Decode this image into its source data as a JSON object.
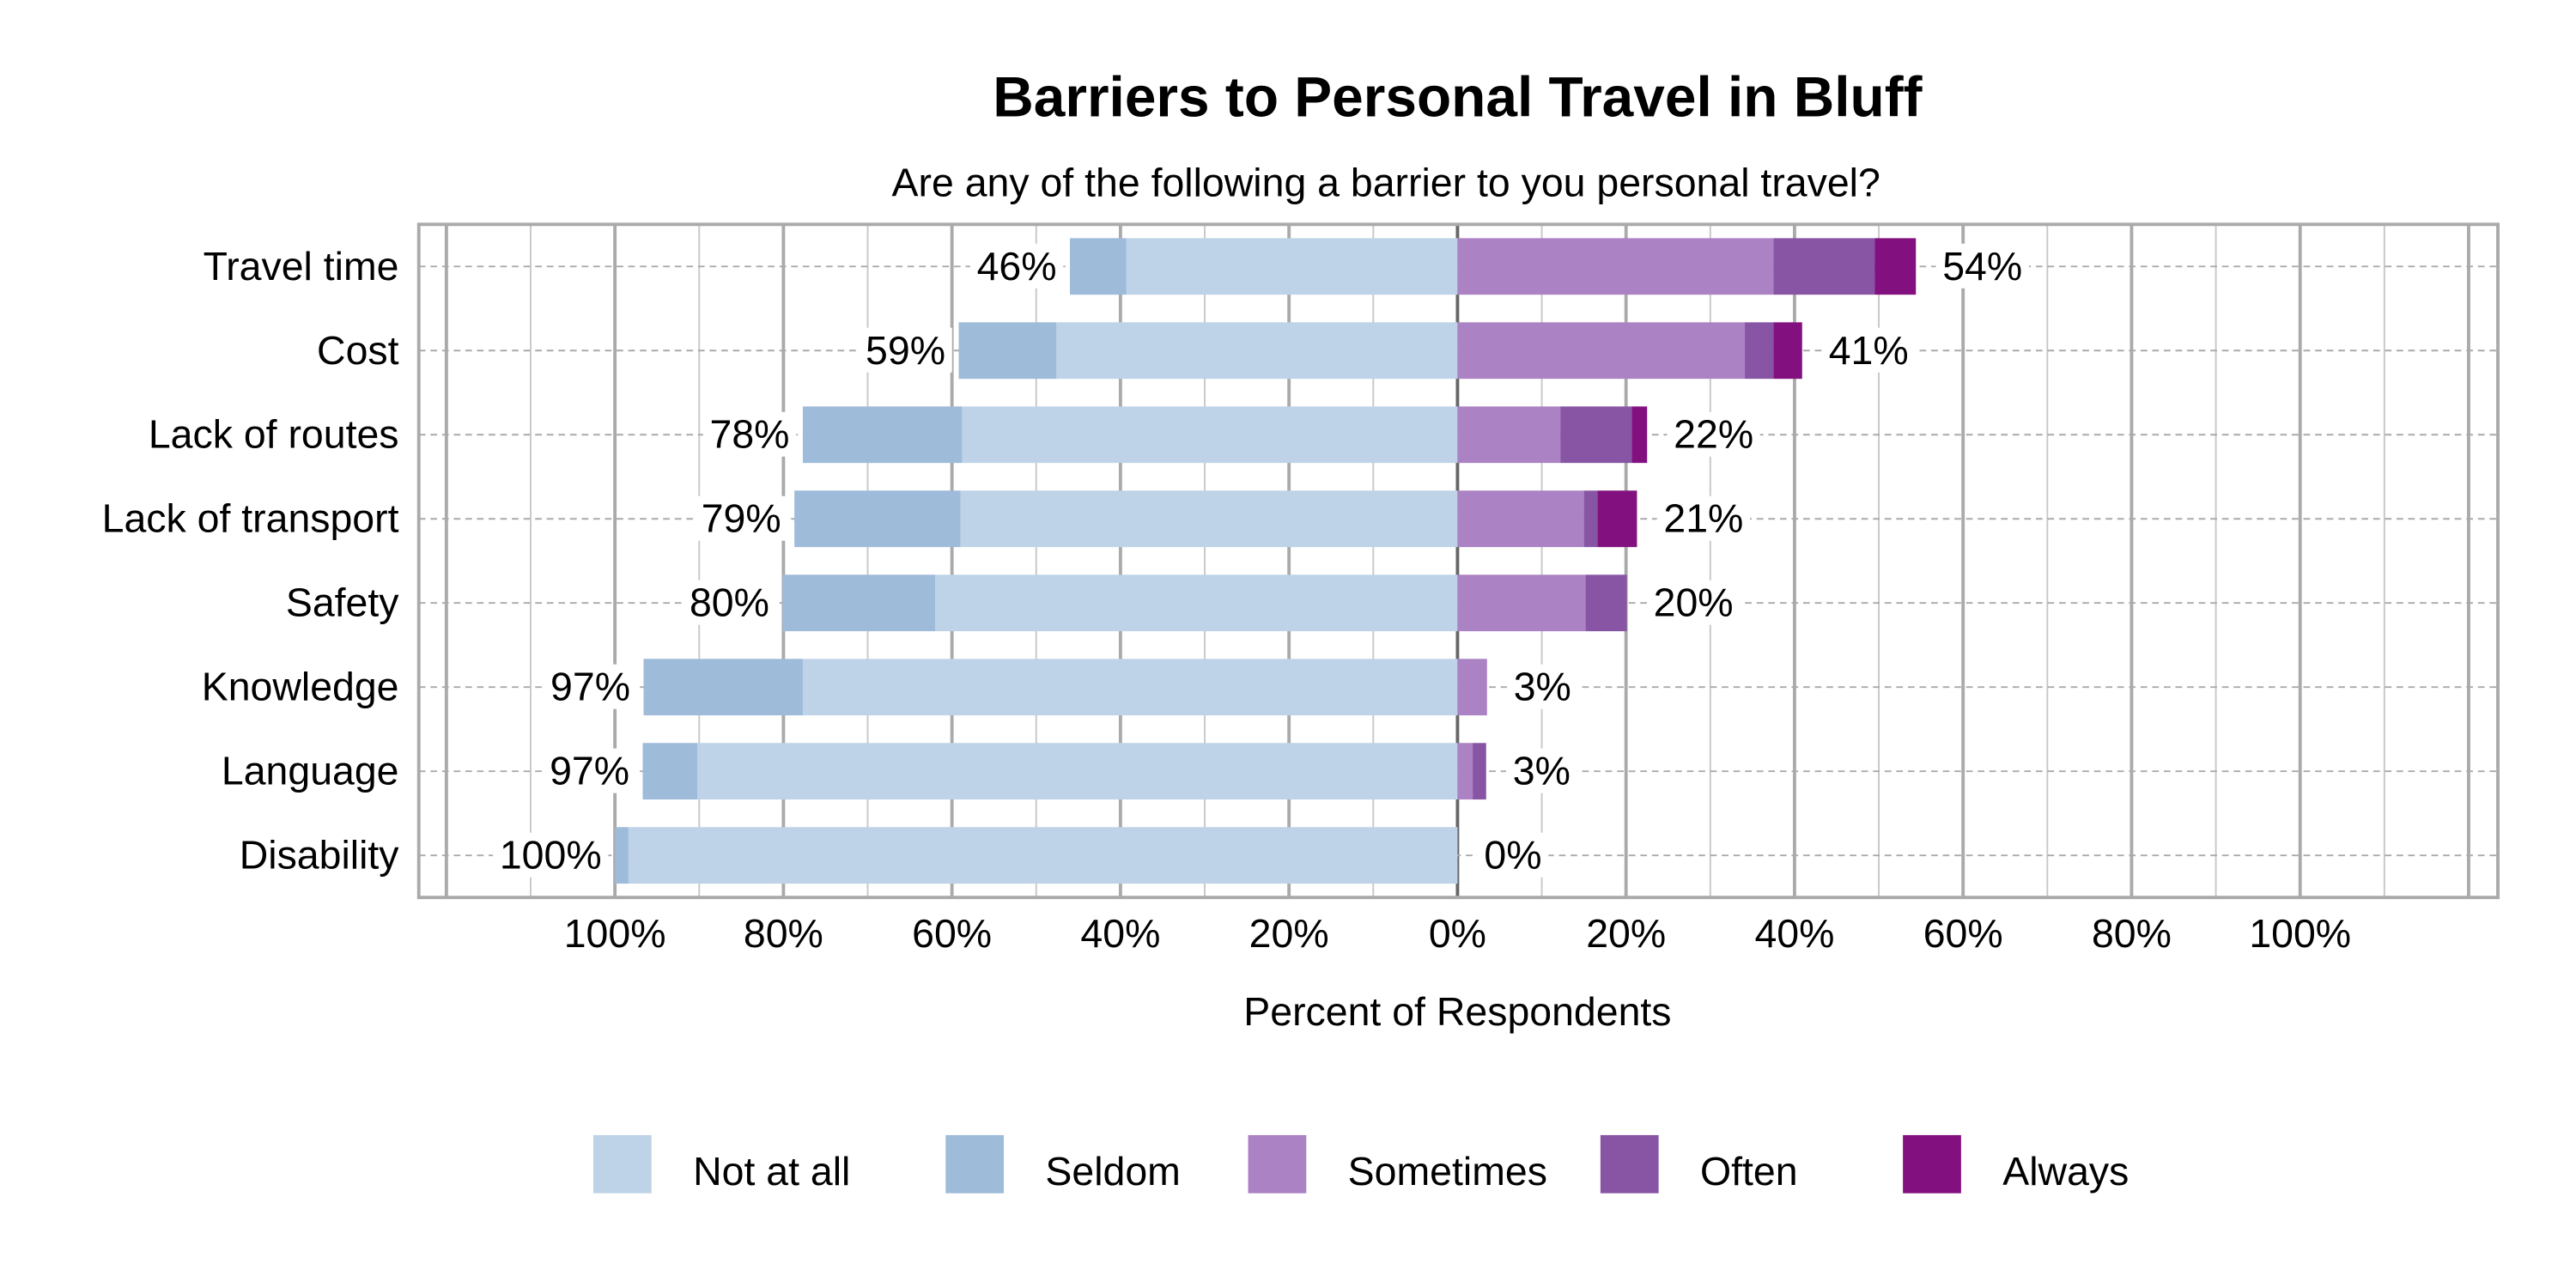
{
  "chart_data": {
    "type": "bar",
    "orientation": "horizontal",
    "stacked": "diverging",
    "title": "Barriers to Personal Travel in Bluff",
    "subtitle": "Are any of the following a barrier to you personal travel?",
    "xlabel": "Percent of Respondents",
    "xlim": [
      -123,
      123
    ],
    "xticks": [
      -100,
      -80,
      -60,
      -40,
      -20,
      0,
      20,
      40,
      60,
      80,
      100
    ],
    "xtick_labels": [
      "100%",
      "80%",
      "60%",
      "40%",
      "20%",
      "0%",
      "20%",
      "40%",
      "60%",
      "80%",
      "100%"
    ],
    "grid": true,
    "legend_position": "bottom",
    "categories": [
      "Travel time",
      "Cost",
      "Lack of routes",
      "Lack of transport",
      "Safety",
      "Knowledge",
      "Language",
      "Disability"
    ],
    "series": [
      {
        "name": "Not at all",
        "side": "left",
        "color": "#bed3e7",
        "values": [
          39.3,
          47.6,
          58.8,
          59.0,
          62.0,
          77.7,
          90.2,
          98.4
        ]
      },
      {
        "name": "Seldom",
        "side": "left",
        "color": "#9ebbd9",
        "values": [
          6.7,
          11.6,
          18.9,
          19.7,
          18.1,
          18.9,
          6.5,
          1.6
        ]
      },
      {
        "name": "Sometimes",
        "side": "right",
        "color": "#ab82c3",
        "values": [
          37.5,
          34.1,
          12.2,
          15.0,
          15.2,
          3.5,
          1.8,
          0
        ]
      },
      {
        "name": "Often",
        "side": "right",
        "color": "#8855a5",
        "values": [
          12.0,
          3.4,
          8.5,
          1.6,
          4.9,
          0,
          1.6,
          0
        ]
      },
      {
        "name": "Always",
        "side": "right",
        "color": "#82117f",
        "values": [
          4.9,
          3.4,
          1.8,
          4.7,
          0,
          0,
          0,
          0
        ]
      }
    ],
    "left_labels": [
      "46%",
      "59%",
      "78%",
      "79%",
      "80%",
      "97%",
      "97%",
      "100%"
    ],
    "right_labels": [
      "54%",
      "41%",
      "22%",
      "21%",
      "20%",
      "3%",
      "3%",
      "0%"
    ]
  }
}
